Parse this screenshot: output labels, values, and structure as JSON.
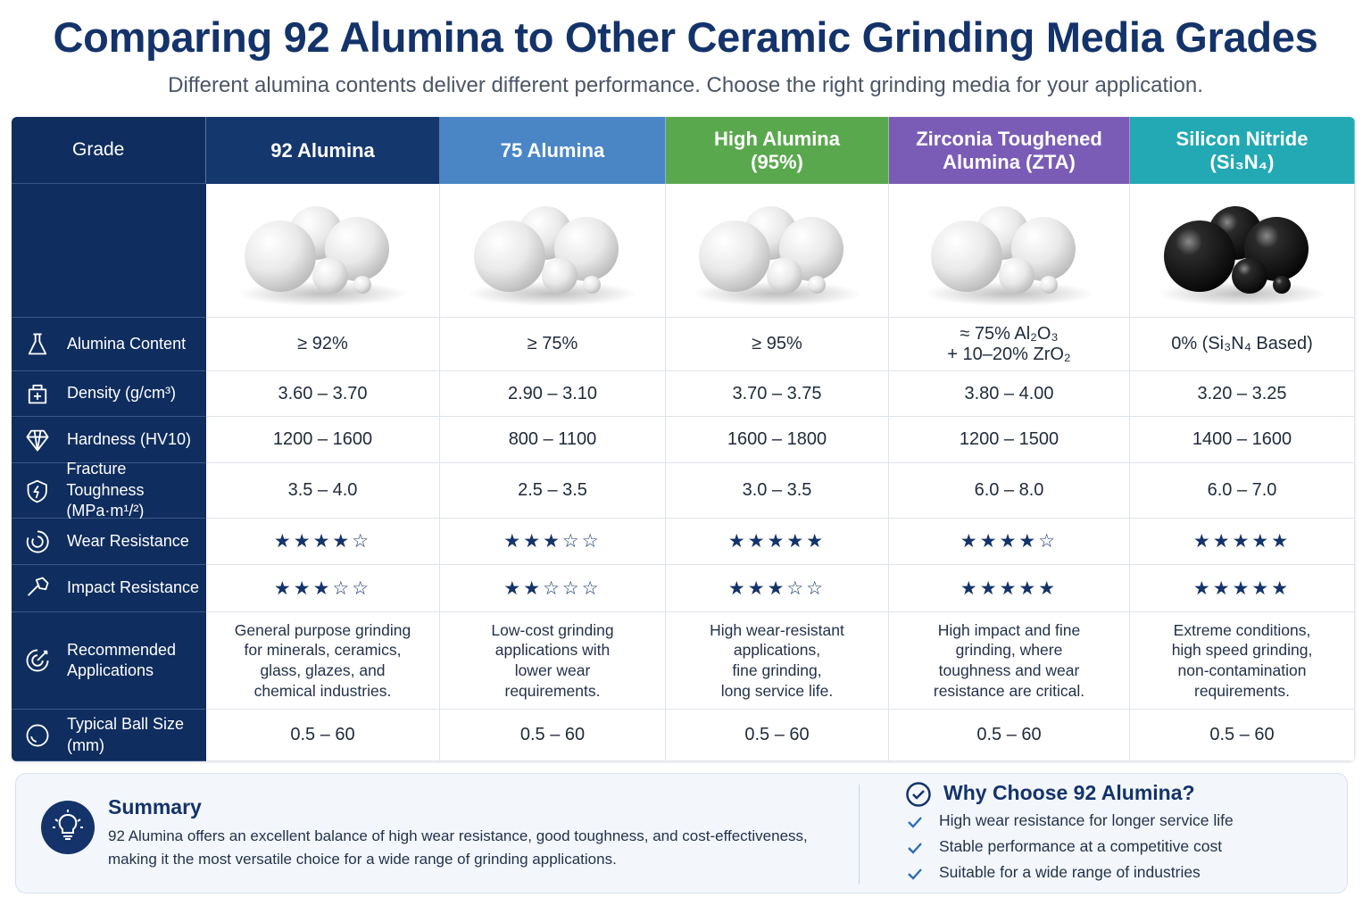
{
  "header": {
    "title": "Comparing 92 Alumina to Other Ceramic Grinding Media Grades",
    "subtitle": "Different alumina contents deliver different performance. Choose the right grinding media for your application."
  },
  "table": {
    "corner": "Grade",
    "columns": [
      {
        "name": "92 Alumina",
        "color": "#14376e",
        "media_color": "white"
      },
      {
        "name": "75 Alumina",
        "color": "#4a86c6",
        "media_color": "white"
      },
      {
        "name": "High Alumina\n(95%)",
        "color": "#5aa84e",
        "media_color": "white"
      },
      {
        "name": "Zirconia Toughened\nAlumina (ZTA)",
        "color": "#7a5cb6",
        "media_color": "white"
      },
      {
        "name": "Silicon Nitride\n(Si₃N₄)",
        "color": "#22a9b4",
        "media_color": "black"
      }
    ],
    "rows": [
      {
        "label": "Alumina Content",
        "cells": [
          "≥ 92%",
          "≥ 75%",
          "≥ 95%",
          "≈ 75% Al₂O₃\n+ 10–20% ZrO₂",
          "0% (Si₃N₄ Based)"
        ]
      },
      {
        "label": "Density (g/cm³)",
        "cells": [
          "3.60 – 3.70",
          "2.90 – 3.10",
          "3.70 – 3.75",
          "3.80 – 4.00",
          "3.20 – 3.25"
        ]
      },
      {
        "label": "Hardness (HV10)",
        "cells": [
          "1200 – 1600",
          "800 – 1100",
          "1600 – 1800",
          "1200 – 1500",
          "1400 – 1600"
        ]
      },
      {
        "label": "Fracture Toughness\n(MPa·m¹/²)",
        "cells": [
          "3.5 – 4.0",
          "2.5 – 3.5",
          "3.0 – 3.5",
          "6.0 – 8.0",
          "6.0 – 7.0"
        ]
      },
      {
        "label": "Wear Resistance",
        "cells": [
          "★★★★☆",
          "★★★☆☆",
          "★★★★★",
          "★★★★☆",
          "★★★★★"
        ]
      },
      {
        "label": "Impact Resistance",
        "cells": [
          "★★★☆☆",
          "★★☆☆☆",
          "★★★☆☆",
          "★★★★★",
          "★★★★★"
        ]
      },
      {
        "label": "Recommended\nApplications",
        "cells": [
          "General purpose grinding\nfor minerals, ceramics,\nglass, glazes, and\nchemical industries.",
          "Low-cost grinding\napplications with\nlower wear\nrequirements.",
          "High wear-resistant\napplications,\nfine grinding,\nlong service life.",
          "High impact and fine\ngrinding, where\ntoughness and wear\nresistance are critical.",
          "Extreme conditions,\nhigh speed grinding,\nnon-contamination\nrequirements."
        ]
      },
      {
        "label": "Typical Ball Size\n(mm)",
        "cells": [
          "0.5 – 60",
          "0.5 – 60",
          "0.5 – 60",
          "0.5 – 60",
          "0.5 – 60"
        ]
      }
    ]
  },
  "summary": {
    "title": "Summary",
    "text": "92 Alumina offers an excellent balance of high wear resistance, good toughness, and cost-effectiveness,\nmaking it the most versatile choice for a wide range of grinding applications."
  },
  "why": {
    "title": "Why Choose 92 Alumina?",
    "items": [
      "High wear resistance for longer service life",
      "Stable performance at a competitive cost",
      "Suitable for a wide range of industries"
    ]
  }
}
